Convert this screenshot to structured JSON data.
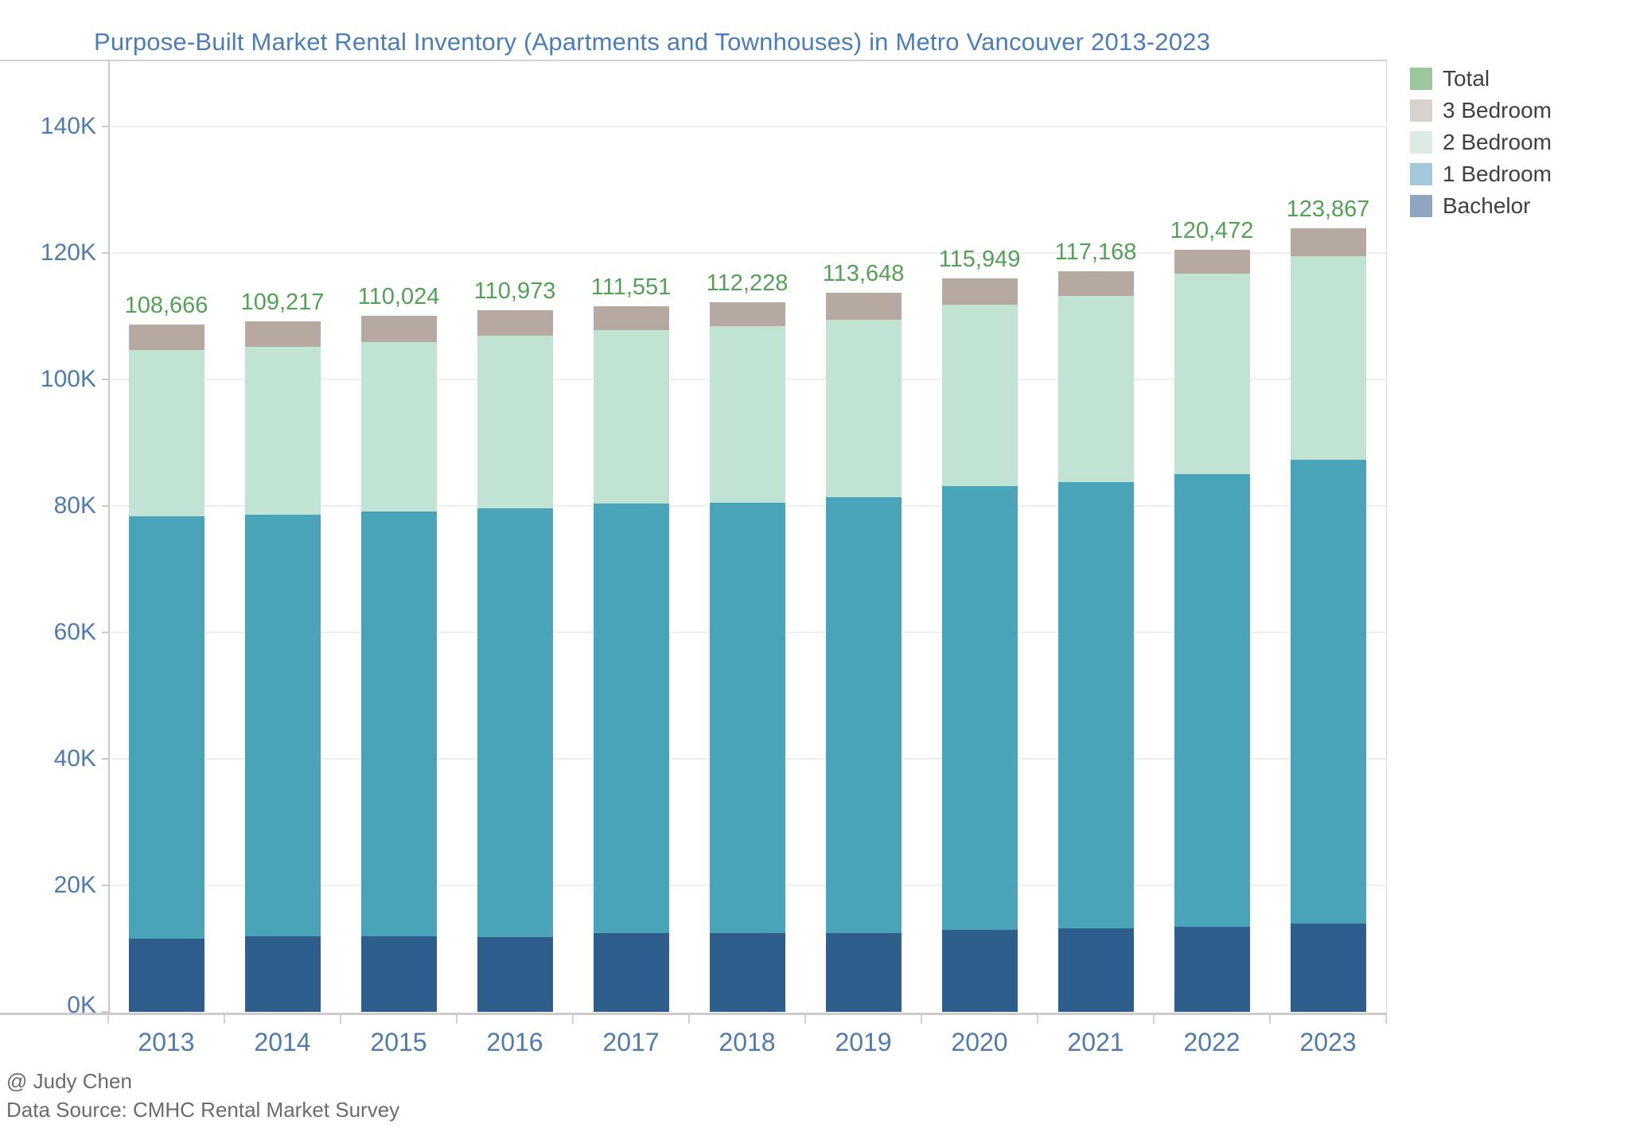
{
  "header": {
    "title": "Purpose-Built Market Rental Inventory (Apartments and Townhouses) in Metro Vancouver 2013-2023"
  },
  "footer": {
    "author": "@ Judy Chen",
    "source": "Data Source: CMHC Rental Market Survey"
  },
  "chart_data": {
    "type": "bar",
    "stacked": true,
    "title": "Purpose-Built Market Rental Inventory (Apartments and Townhouses) in Metro Vancouver 2013-2023",
    "categories": [
      "2013",
      "2014",
      "2015",
      "2016",
      "2017",
      "2018",
      "2019",
      "2020",
      "2021",
      "2022",
      "2023"
    ],
    "series": [
      {
        "name": "Bachelor",
        "color": "#2e5e8b",
        "values": [
          11600,
          11900,
          11900,
          11800,
          12400,
          12400,
          12500,
          13000,
          13200,
          13400,
          13900
        ]
      },
      {
        "name": "1 Bedroom",
        "color": "#49a4b9",
        "values": [
          66800,
          66700,
          67200,
          67800,
          68000,
          68100,
          68900,
          70100,
          70600,
          71600,
          73400
        ]
      },
      {
        "name": "2 Bedroom",
        "color": "#c0e3d3",
        "values": [
          26300,
          26600,
          26800,
          27300,
          27400,
          27900,
          28000,
          28700,
          29400,
          31700,
          32200
        ]
      },
      {
        "name": "3 Bedroom",
        "color": "#b5a9a2",
        "values": [
          3966,
          4017,
          4124,
          4073,
          3751,
          3828,
          4248,
          4149,
          3968,
          3772,
          4367
        ]
      }
    ],
    "totals": [
      108666,
      109217,
      110024,
      110973,
      111551,
      112228,
      113648,
      115949,
      117168,
      120472,
      123867
    ],
    "total_labels": [
      "108,666",
      "109,217",
      "110,024",
      "110,973",
      "111,551",
      "112,228",
      "113,648",
      "115,949",
      "117,168",
      "120,472",
      "123,867"
    ],
    "total_label_color": "#53a155",
    "legend": [
      {
        "label": "Total",
        "color": "#9cc69b"
      },
      {
        "label": "3 Bedroom",
        "color": "#d8d2ce"
      },
      {
        "label": "2 Bedroom",
        "color": "#dcece4"
      },
      {
        "label": "1 Bedroom",
        "color": "#a4c9da"
      },
      {
        "label": "Bachelor",
        "color": "#8ea4bf"
      }
    ],
    "legend_position": "top-right",
    "y_axis": {
      "min": 0,
      "max": 140000,
      "tick_step": 20000,
      "tick_labels": [
        "0K",
        "20K",
        "40K",
        "60K",
        "80K",
        "100K",
        "120K",
        "140K"
      ]
    },
    "x_axis": {
      "tick_labels": [
        "2013",
        "2014",
        "2015",
        "2016",
        "2017",
        "2018",
        "2019",
        "2020",
        "2021",
        "2022",
        "2023"
      ]
    },
    "gridlines": true
  }
}
